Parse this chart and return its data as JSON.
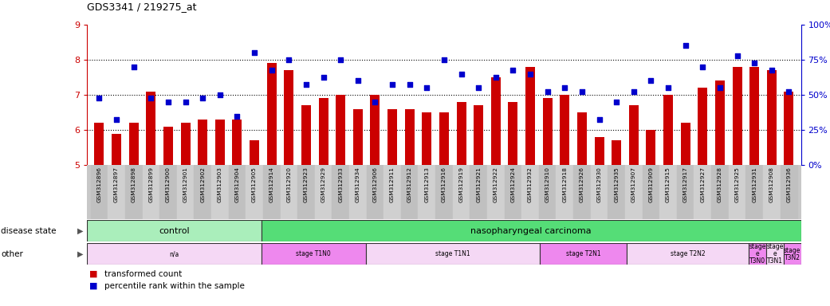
{
  "title": "GDS3341 / 219275_at",
  "samples": [
    "GSM312896",
    "GSM312897",
    "GSM312898",
    "GSM312899",
    "GSM312900",
    "GSM312901",
    "GSM312902",
    "GSM312903",
    "GSM312904",
    "GSM312905",
    "GSM312914",
    "GSM312920",
    "GSM312923",
    "GSM312929",
    "GSM312933",
    "GSM312934",
    "GSM312906",
    "GSM312911",
    "GSM312912",
    "GSM312913",
    "GSM312916",
    "GSM312919",
    "GSM312921",
    "GSM312922",
    "GSM312924",
    "GSM312932",
    "GSM312910",
    "GSM312918",
    "GSM312926",
    "GSM312930",
    "GSM312935",
    "GSM312907",
    "GSM312909",
    "GSM312915",
    "GSM312917",
    "GSM312927",
    "GSM312928",
    "GSM312925",
    "GSM312931",
    "GSM312908",
    "GSM312936"
  ],
  "bar_values": [
    6.2,
    5.9,
    6.2,
    7.1,
    6.1,
    6.2,
    6.3,
    6.3,
    6.3,
    5.7,
    7.9,
    7.7,
    6.7,
    6.9,
    7.0,
    6.6,
    7.0,
    6.6,
    6.6,
    6.5,
    6.5,
    6.8,
    6.7,
    7.5,
    6.8,
    7.8,
    6.9,
    7.0,
    6.5,
    5.8,
    5.7,
    6.7,
    6.0,
    7.0,
    6.2,
    7.2,
    7.4,
    7.8,
    7.8,
    7.7,
    7.1
  ],
  "scatter_values": [
    6.9,
    6.3,
    7.8,
    6.9,
    6.8,
    6.8,
    6.9,
    7.0,
    6.4,
    8.2,
    7.7,
    8.0,
    7.3,
    7.5,
    8.0,
    7.4,
    6.8,
    7.3,
    7.3,
    7.2,
    8.0,
    7.6,
    7.2,
    7.5,
    7.7,
    7.6,
    7.1,
    7.2,
    7.1,
    6.3,
    6.8,
    7.1,
    7.4,
    7.2,
    8.4,
    7.8,
    7.2,
    8.1,
    7.9,
    7.7,
    7.1
  ],
  "ylim": [
    5.0,
    9.0
  ],
  "yticks": [
    5,
    6,
    7,
    8,
    9
  ],
  "ytick_color": "#cc0000",
  "y2ticks": [
    0,
    25,
    50,
    75,
    100
  ],
  "y2labels": [
    "0%",
    "25%",
    "50%",
    "75%",
    "100%"
  ],
  "bar_color": "#cc0000",
  "scatter_color": "#0000cc",
  "disease_state_groups": [
    {
      "label": "control",
      "start": 0,
      "end": 9,
      "color": "#aaeebb"
    },
    {
      "label": "nasopharyngeal carcinoma",
      "start": 10,
      "end": 40,
      "color": "#55dd77"
    }
  ],
  "other_groups": [
    {
      "label": "n/a",
      "start": 0,
      "end": 9,
      "color": "#f5d8f5"
    },
    {
      "label": "stage T1N0",
      "start": 10,
      "end": 15,
      "color": "#ee88ee"
    },
    {
      "label": "stage T1N1",
      "start": 16,
      "end": 25,
      "color": "#f5d8f5"
    },
    {
      "label": "stage T2N1",
      "start": 26,
      "end": 30,
      "color": "#ee88ee"
    },
    {
      "label": "stage T2N2",
      "start": 31,
      "end": 37,
      "color": "#f5d8f5"
    },
    {
      "label": "stage\ne\nT3N0",
      "start": 38,
      "end": 38,
      "color": "#ee88ee"
    },
    {
      "label": "stage\ne\nT3N1",
      "start": 39,
      "end": 39,
      "color": "#f5d8f5"
    },
    {
      "label": "stage\nT3N2",
      "start": 40,
      "end": 40,
      "color": "#ee88ee"
    }
  ],
  "label_disease": "disease state",
  "label_other": "other",
  "legend_bar": "transformed count",
  "legend_scatter": "percentile rank within the sample",
  "xtick_bg_colors": [
    "#cccccc",
    "#dddddd"
  ],
  "plot_bg": "white"
}
